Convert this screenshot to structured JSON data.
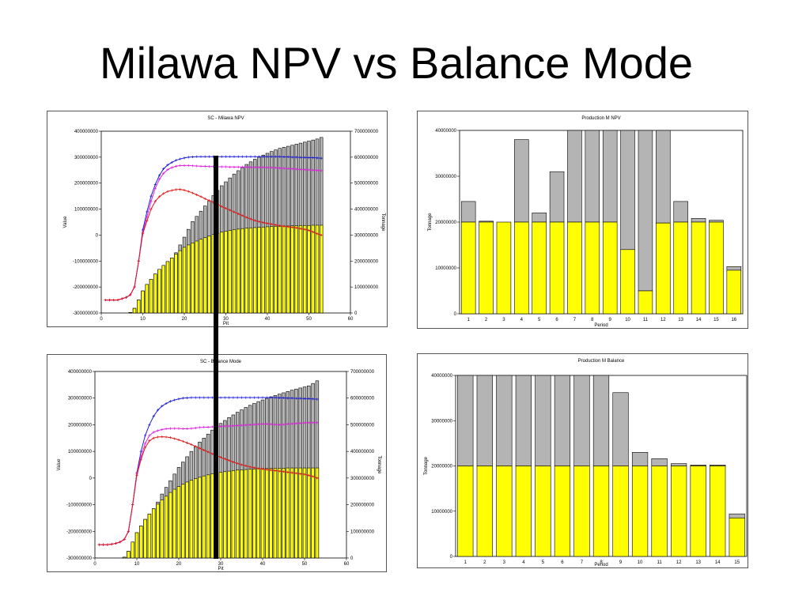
{
  "slide": {
    "title": "Milawa NPV vs Balance Mode"
  },
  "chart_data": [
    {
      "type": "bar",
      "title": "SC - Milawa NPV",
      "xlabel": "Pit",
      "ylabel": "Value",
      "ylabel2": "Tonnage",
      "xlim": [
        0,
        60
      ],
      "x_ticks": [
        "0",
        "10",
        "20",
        "30",
        "40",
        "50",
        "60"
      ],
      "ylim": [
        -300000000,
        400000000
      ],
      "y_ticks": [
        "400000000",
        "300000000",
        "200000000",
        "100000000",
        "0",
        "-100000000",
        "-200000000",
        "-300000000"
      ],
      "y2lim": [
        0,
        700000000
      ],
      "y2_ticks": [
        "700000000",
        "600000000",
        "500000000",
        "400000000",
        "300000000",
        "200000000",
        "100000000",
        "0"
      ],
      "x": [
        1,
        2,
        3,
        4,
        5,
        6,
        7,
        8,
        9,
        10,
        11,
        12,
        13,
        14,
        15,
        16,
        17,
        18,
        19,
        20,
        21,
        22,
        23,
        24,
        25,
        26,
        27,
        28,
        29,
        30,
        31,
        32,
        33,
        34,
        35,
        36,
        37,
        38,
        39,
        40,
        41,
        42,
        43,
        44,
        45,
        46,
        47,
        48,
        49,
        50,
        51,
        52,
        53
      ],
      "series": [
        {
          "values": [
            0,
            0,
            0,
            0,
            0,
            0,
            2000000,
            18000000,
            50000000,
            85000000,
            110000000,
            130000000,
            150000000,
            168000000,
            183000000,
            198000000,
            212000000,
            227000000,
            240000000,
            253000000,
            262000000,
            270000000,
            277000000,
            284000000,
            290000000,
            296000000,
            302000000,
            307000000,
            312000000,
            315000000,
            318000000,
            321000000,
            323000000,
            325000000,
            327000000,
            328000000,
            329000000,
            330000000,
            331000000,
            332000000,
            333000000,
            334000000,
            334000000,
            335000000,
            335000000,
            336000000,
            336000000,
            337000000,
            337000000,
            337000000,
            338000000,
            338000000,
            338000000
          ]
        },
        {
          "values": [
            0,
            0,
            0,
            0,
            0,
            0,
            2000000,
            18000000,
            50000000,
            85000000,
            110000000,
            130000000,
            150000000,
            168000000,
            183000000,
            198000000,
            212000000,
            232000000,
            262000000,
            292000000,
            322000000,
            352000000,
            372000000,
            392000000,
            412000000,
            432000000,
            452000000,
            472000000,
            490000000,
            505000000,
            520000000,
            535000000,
            548000000,
            560000000,
            572000000,
            582000000,
            592000000,
            600000000,
            608000000,
            615000000,
            622000000,
            628000000,
            634000000,
            638000000,
            642000000,
            646000000,
            650000000,
            654000000,
            658000000,
            662000000,
            666000000,
            670000000,
            676000000
          ]
        },
        {
          "values": [
            -250000000,
            -250000000,
            -250000000,
            -250000000,
            -245000000,
            -240000000,
            -230000000,
            -200000000,
            -100000000,
            20000000,
            90000000,
            150000000,
            195000000,
            230000000,
            255000000,
            270000000,
            280000000,
            288000000,
            293000000,
            297000000,
            300000000,
            301000000,
            302000000,
            302000000,
            302000000,
            302000000,
            302000000,
            302000000,
            302000000,
            302000000,
            302000000,
            302000000,
            302000000,
            302000000,
            302000000,
            302000000,
            302000000,
            302000000,
            302000000,
            302000000,
            302000000,
            302000000,
            302000000,
            301000000,
            301000000,
            300000000,
            300000000,
            299000000,
            299000000,
            298000000,
            298000000,
            297000000,
            296000000
          ]
        },
        {
          "values": [
            -250000000,
            -250000000,
            -250000000,
            -250000000,
            -245000000,
            -240000000,
            -230000000,
            -200000000,
            -100000000,
            10000000,
            70000000,
            130000000,
            180000000,
            215000000,
            238000000,
            252000000,
            260000000,
            265000000,
            268000000,
            268000000,
            268000000,
            267000000,
            266000000,
            265000000,
            265000000,
            264000000,
            264000000,
            263000000,
            263000000,
            263000000,
            262000000,
            262000000,
            262000000,
            262000000,
            262000000,
            261000000,
            261000000,
            261000000,
            261000000,
            260000000,
            260000000,
            259000000,
            258000000,
            257000000,
            256000000,
            255000000,
            254000000,
            253000000,
            252000000,
            251000000,
            250000000,
            249000000,
            248000000
          ]
        },
        {
          "values": [
            -250000000,
            -250000000,
            -250000000,
            -250000000,
            -245000000,
            -240000000,
            -230000000,
            -200000000,
            -100000000,
            5000000,
            55000000,
            100000000,
            130000000,
            148000000,
            160000000,
            168000000,
            172000000,
            175000000,
            176000000,
            173000000,
            168000000,
            162000000,
            155000000,
            148000000,
            140000000,
            133000000,
            126000000,
            118000000,
            110000000,
            103000000,
            96000000,
            89000000,
            82000000,
            75000000,
            68000000,
            62000000,
            56000000,
            52000000,
            48000000,
            45000000,
            42000000,
            39000000,
            36000000,
            34000000,
            32000000,
            30000000,
            28000000,
            25000000,
            22000000,
            18000000,
            12000000,
            5000000,
            0
          ]
        }
      ]
    },
    {
      "type": "bar",
      "title": "SC - Balance Mode",
      "xlabel": "Pit",
      "ylabel": "Value",
      "ylabel2": "Tonnage",
      "xlim": [
        0,
        60
      ],
      "x_ticks": [
        "0",
        "10",
        "20",
        "30",
        "40",
        "50",
        "60"
      ],
      "ylim": [
        -300000000,
        400000000
      ],
      "y_ticks": [
        "400000000",
        "300000000",
        "200000000",
        "100000000",
        "0",
        "-100000000",
        "-200000000",
        "-300000000"
      ],
      "y2lim": [
        0,
        700000000
      ],
      "y2_ticks": [
        "700000000",
        "600000000",
        "500000000",
        "400000000",
        "300000000",
        "200000000",
        "100000000",
        "0"
      ],
      "x": [
        1,
        2,
        3,
        4,
        5,
        6,
        7,
        8,
        9,
        10,
        11,
        12,
        13,
        14,
        15,
        16,
        17,
        18,
        19,
        20,
        21,
        22,
        23,
        24,
        25,
        26,
        27,
        28,
        29,
        30,
        31,
        32,
        33,
        34,
        35,
        36,
        37,
        38,
        39,
        40,
        41,
        42,
        43,
        44,
        45,
        46,
        47,
        48,
        49,
        50,
        51,
        52,
        53
      ],
      "series": [
        {
          "values": [
            0,
            0,
            0,
            0,
            0,
            0,
            3000000,
            25000000,
            60000000,
            95000000,
            120000000,
            145000000,
            165000000,
            185000000,
            202000000,
            218000000,
            232000000,
            246000000,
            258000000,
            268000000,
            277000000,
            285000000,
            292000000,
            298000000,
            303000000,
            308000000,
            312000000,
            316000000,
            319000000,
            322000000,
            324000000,
            326000000,
            328000000,
            330000000,
            331000000,
            332000000,
            333000000,
            334000000,
            335000000,
            335000000,
            336000000,
            336000000,
            337000000,
            337000000,
            337000000,
            338000000,
            338000000,
            338000000,
            338000000,
            338000000,
            338000000,
            338000000,
            338000000
          ]
        },
        {
          "values": [
            0,
            0,
            0,
            0,
            0,
            0,
            3000000,
            25000000,
            60000000,
            95000000,
            120000000,
            145000000,
            165000000,
            185000000,
            210000000,
            240000000,
            265000000,
            290000000,
            315000000,
            340000000,
            360000000,
            380000000,
            400000000,
            418000000,
            435000000,
            450000000,
            465000000,
            480000000,
            493000000,
            505000000,
            516000000,
            527000000,
            537000000,
            547000000,
            556000000,
            565000000,
            573000000,
            580000000,
            587000000,
            593000000,
            599000000,
            605000000,
            610000000,
            615000000,
            620000000,
            625000000,
            630000000,
            634000000,
            638000000,
            642000000,
            646000000,
            655000000,
            665000000
          ]
        },
        {
          "values": [
            -250000000,
            -250000000,
            -250000000,
            -248000000,
            -245000000,
            -240000000,
            -230000000,
            -200000000,
            -100000000,
            20000000,
            100000000,
            160000000,
            200000000,
            232000000,
            255000000,
            270000000,
            280000000,
            288000000,
            293000000,
            297000000,
            300000000,
            301000000,
            302000000,
            302000000,
            302000000,
            302000000,
            302000000,
            302000000,
            302000000,
            302000000,
            302000000,
            302000000,
            302000000,
            302000000,
            302000000,
            302000000,
            302000000,
            302000000,
            302000000,
            302000000,
            302000000,
            302000000,
            302000000,
            301000000,
            301000000,
            300000000,
            300000000,
            299000000,
            299000000,
            298000000,
            298000000,
            297000000,
            296000000
          ]
        },
        {
          "values": [
            -250000000,
            -250000000,
            -250000000,
            -248000000,
            -245000000,
            -240000000,
            -230000000,
            -200000000,
            -100000000,
            15000000,
            80000000,
            130000000,
            160000000,
            172000000,
            178000000,
            182000000,
            185000000,
            186000000,
            186000000,
            186000000,
            185000000,
            185000000,
            186000000,
            188000000,
            190000000,
            191000000,
            191000000,
            192000000,
            193000000,
            194000000,
            195000000,
            195000000,
            196000000,
            197000000,
            198000000,
            199000000,
            200000000,
            201000000,
            202000000,
            203000000,
            203000000,
            202000000,
            201000000,
            200000000,
            201000000,
            203000000,
            204000000,
            205000000,
            206000000,
            207000000,
            208000000,
            208000000,
            208000000
          ]
        },
        {
          "values": [
            -250000000,
            -250000000,
            -250000000,
            -248000000,
            -245000000,
            -240000000,
            -230000000,
            -200000000,
            -100000000,
            10000000,
            70000000,
            115000000,
            140000000,
            150000000,
            154000000,
            155000000,
            154000000,
            152000000,
            148000000,
            143000000,
            138000000,
            132000000,
            126000000,
            119000000,
            112000000,
            105000000,
            98000000,
            91000000,
            84000000,
            78000000,
            72000000,
            66000000,
            60000000,
            55000000,
            50000000,
            46000000,
            42000000,
            39000000,
            36000000,
            34000000,
            32000000,
            30000000,
            28000000,
            26000000,
            24000000,
            22000000,
            20000000,
            18000000,
            16000000,
            14000000,
            10000000,
            6000000,
            0
          ]
        }
      ]
    },
    {
      "type": "bar",
      "title": "Production M NPV",
      "xlabel": "Period",
      "ylabel": "Tonnage",
      "categories": [
        "1",
        "2",
        "3",
        "4",
        "5",
        "6",
        "7",
        "8",
        "9",
        "10",
        "11",
        "12",
        "13",
        "14",
        "15",
        "16"
      ],
      "ylim": [
        0,
        40000000
      ],
      "y_ticks": [
        "40000000",
        "30000000",
        "20000000",
        "10000000",
        "0"
      ],
      "series": [
        {
          "values": [
            20000000,
            20000000,
            20000000,
            20000000,
            20000000,
            20000000,
            20000000,
            20000000,
            20000000,
            14000000,
            5000000,
            19800000,
            20000000,
            20000000,
            20000000,
            9500000
          ]
        },
        {
          "values": [
            24500000,
            20200000,
            20000000,
            38000000,
            22000000,
            31000000,
            40000000,
            40000000,
            40000000,
            40000000,
            40000000,
            40000000,
            24500000,
            20800000,
            20400000,
            10300000
          ]
        }
      ]
    },
    {
      "type": "bar",
      "title": "Production M Balance",
      "xlabel": "Period",
      "ylabel": "Tonnage",
      "categories": [
        "1",
        "2",
        "3",
        "4",
        "5",
        "6",
        "7",
        "8",
        "9",
        "10",
        "11",
        "12",
        "13",
        "14",
        "15"
      ],
      "ylim": [
        0,
        40000000
      ],
      "y_ticks": [
        "40000000",
        "30000000",
        "20000000",
        "10000000",
        "0"
      ],
      "series": [
        {
          "values": [
            20000000,
            20000000,
            20000000,
            20000000,
            20000000,
            20000000,
            20000000,
            20000000,
            20000000,
            20000000,
            20000000,
            20000000,
            20000000,
            20000000,
            8500000
          ]
        },
        {
          "values": [
            40000000,
            40000000,
            40000000,
            40000000,
            40000000,
            40000000,
            40000000,
            40000000,
            36200000,
            23000000,
            21600000,
            20500000,
            20200000,
            20200000,
            9400000
          ]
        }
      ]
    }
  ],
  "colors": {
    "ore_bar": "#ffff00",
    "waste_bar": "#b4b4b4",
    "bar_outline": "#000000",
    "line_blue": "#1c1cd8",
    "line_magenta": "#e020e0",
    "line_red": "#e01818",
    "marker_line": "#000000"
  }
}
